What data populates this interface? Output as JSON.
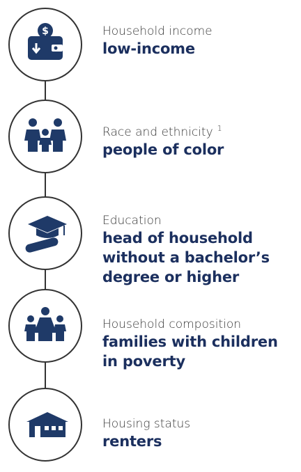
{
  "items": [
    {
      "label": "Household income",
      "value": [
        "low-income"
      ]
    },
    {
      "label": "Race and ethnicity",
      "footnote": "1",
      "value": [
        "people of color"
      ]
    },
    {
      "label": "Education",
      "value": [
        "head of household",
        "without a bachelor’s",
        "degree or higher"
      ]
    },
    {
      "label": "Household composition",
      "value": [
        "families with children",
        "in poverty"
      ]
    },
    {
      "label": "Housing status",
      "value": [
        "renters"
      ]
    }
  ]
}
